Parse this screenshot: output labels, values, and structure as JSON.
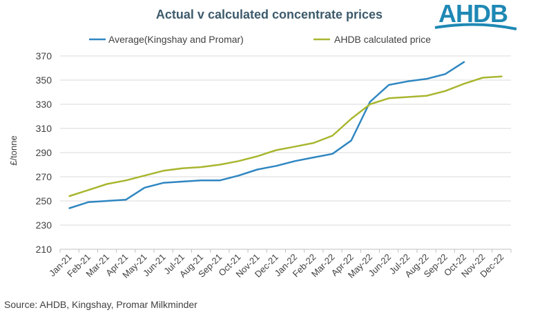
{
  "logo": {
    "text": "AHDB",
    "color": "#1e88b4"
  },
  "source": "Source: AHDB, Kingshay, Promar Milkminder",
  "chart_data": {
    "type": "line",
    "title": "Actual v calculated concentrate prices",
    "ylabel": "£/tonne",
    "xlabel": "",
    "ylim": [
      210,
      370
    ],
    "yticks": [
      210,
      230,
      250,
      270,
      290,
      310,
      330,
      350,
      370
    ],
    "grid": true,
    "legend_position": "top",
    "categories": [
      "Jan-21",
      "Feb-21",
      "Mar-21",
      "Apr-21",
      "May-21",
      "Jun-21",
      "Jul-21",
      "Aug-21",
      "Sep-21",
      "Oct-21",
      "Nov-21",
      "Dec-21",
      "Jan-22",
      "Feb-22",
      "Mar-22",
      "Apr-22",
      "May-22",
      "Jun-22",
      "Jul-22",
      "Aug-22",
      "Sep-22",
      "Oct-22",
      "Nov-22",
      "Dec-22"
    ],
    "series": [
      {
        "name": "Average(Kingshay and Promar)",
        "color": "#2e86c1",
        "values": [
          244,
          249,
          250,
          251,
          261,
          265,
          266,
          267,
          267,
          271,
          276,
          279,
          283,
          286,
          289,
          300,
          332,
          346,
          349,
          351,
          355,
          365,
          null,
          null
        ]
      },
      {
        "name": "AHDB calculated price",
        "color": "#a8b62e",
        "values": [
          254,
          259,
          264,
          267,
          271,
          275,
          277,
          278,
          280,
          283,
          287,
          292,
          295,
          298,
          304,
          318,
          330,
          335,
          336,
          337,
          341,
          347,
          352,
          353
        ]
      }
    ]
  }
}
